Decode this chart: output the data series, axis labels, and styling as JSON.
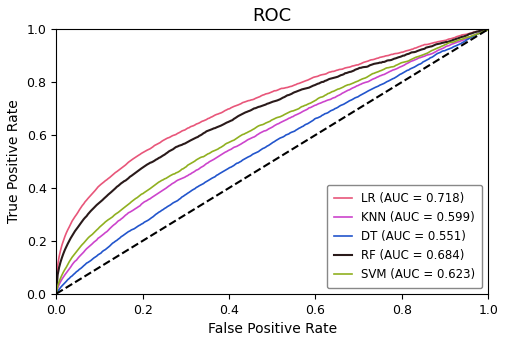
{
  "title": "ROC",
  "xlabel": "False Positive Rate",
  "ylabel": "True Positive Rate",
  "xlim": [
    0.0,
    1.0
  ],
  "ylim": [
    0.0,
    1.0
  ],
  "models": [
    {
      "name": "LR",
      "auc": 0.718,
      "color": "#E8567A",
      "lw": 1.2,
      "seed": 10
    },
    {
      "name": "KNN",
      "auc": 0.599,
      "color": "#CC44CC",
      "lw": 1.2,
      "seed": 20
    },
    {
      "name": "DT",
      "auc": 0.551,
      "color": "#2255CC",
      "lw": 1.2,
      "seed": 30
    },
    {
      "name": "RF",
      "auc": 0.684,
      "color": "#2A1A1A",
      "lw": 1.5,
      "seed": 40
    },
    {
      "name": "SVM",
      "auc": 0.623,
      "color": "#90B020",
      "lw": 1.2,
      "seed": 50
    }
  ],
  "diagonal_color": "black",
  "diagonal_lw": 1.5,
  "legend_loc": "lower right",
  "title_fontsize": 13,
  "label_fontsize": 10,
  "tick_fontsize": 9,
  "legend_fontsize": 8.5,
  "figsize": [
    5.05,
    3.43
  ],
  "dpi": 100
}
